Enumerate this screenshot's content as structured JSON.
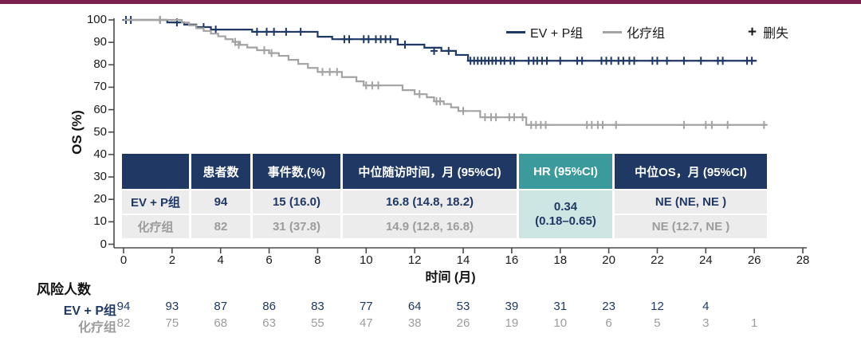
{
  "accent_bar_color": "#7A1F4E",
  "colors": {
    "navy": "#1F3864",
    "gray_series": "#A3A3A3",
    "gray_text": "#9C9C9C",
    "teal_header": "#3B9A9C",
    "teal_cell": "#CDE6E4",
    "row_bg": "#ECECEC",
    "axis": "#4A4A4A",
    "text": "#1a1a1a"
  },
  "legend": {
    "series": [
      {
        "label": "EV + P组",
        "color": "#1F3864"
      },
      {
        "label": "化疗组",
        "color": "#A3A3A3"
      }
    ],
    "censored_symbol": "+",
    "censored_label": "删失"
  },
  "chart_data": {
    "type": "line",
    "chart_kind": "kaplan-meier-step",
    "title": "",
    "xlabel": "时间 (月)",
    "ylabel": "OS (%)",
    "xlim": [
      0,
      28
    ],
    "ylim": [
      0,
      100
    ],
    "x_ticks": [
      0,
      2,
      4,
      6,
      8,
      10,
      12,
      14,
      16,
      18,
      20,
      22,
      24,
      26,
      28
    ],
    "y_ticks": [
      0,
      10,
      20,
      30,
      40,
      50,
      60,
      70,
      80,
      90,
      100
    ],
    "grid": false,
    "legend_position": "top-right",
    "series": [
      {
        "name": "EV + P组",
        "color": "#1F3864",
        "points": [
          [
            0,
            100
          ],
          [
            1.8,
            98.9
          ],
          [
            2.5,
            97.9
          ],
          [
            3.0,
            96.8
          ],
          [
            3.6,
            95.7
          ],
          [
            5.3,
            94.7
          ],
          [
            8.0,
            92.5
          ],
          [
            8.6,
            91.4
          ],
          [
            11.3,
            89.0
          ],
          [
            12.4,
            87.6
          ],
          [
            13.1,
            86.2
          ],
          [
            13.7,
            84.4
          ],
          [
            14.2,
            81.8
          ],
          [
            26.1,
            81.8
          ]
        ],
        "censor_marks": [
          [
            0.1,
            100
          ],
          [
            0.3,
            100
          ],
          [
            1.5,
            100
          ],
          [
            2.2,
            98.9
          ],
          [
            3.3,
            96.8
          ],
          [
            3.8,
            95.7
          ],
          [
            5.5,
            94.7
          ],
          [
            5.9,
            94.7
          ],
          [
            6.2,
            94.7
          ],
          [
            6.7,
            94.7
          ],
          [
            7.3,
            94.7
          ],
          [
            9.1,
            91.4
          ],
          [
            9.3,
            91.4
          ],
          [
            9.9,
            91.4
          ],
          [
            10.1,
            91.4
          ],
          [
            10.4,
            91.4
          ],
          [
            10.6,
            91.4
          ],
          [
            10.8,
            91.4
          ],
          [
            11.0,
            91.4
          ],
          [
            11.6,
            89.0
          ],
          [
            12.8,
            86.2
          ],
          [
            13.4,
            86.2
          ],
          [
            14.3,
            81.8
          ],
          [
            14.45,
            81.8
          ],
          [
            14.6,
            81.8
          ],
          [
            14.75,
            81.8
          ],
          [
            14.9,
            81.8
          ],
          [
            15.05,
            81.8
          ],
          [
            15.2,
            81.8
          ],
          [
            15.35,
            81.8
          ],
          [
            15.55,
            81.8
          ],
          [
            15.7,
            81.8
          ],
          [
            15.95,
            81.8
          ],
          [
            16.1,
            81.8
          ],
          [
            16.7,
            81.8
          ],
          [
            16.9,
            81.8
          ],
          [
            17.05,
            81.8
          ],
          [
            17.25,
            81.8
          ],
          [
            17.45,
            81.8
          ],
          [
            18.0,
            81.8
          ],
          [
            18.7,
            81.8
          ],
          [
            18.9,
            81.8
          ],
          [
            19.7,
            81.8
          ],
          [
            19.9,
            81.8
          ],
          [
            20.1,
            81.8
          ],
          [
            20.4,
            81.8
          ],
          [
            20.6,
            81.8
          ],
          [
            20.85,
            81.8
          ],
          [
            21.05,
            81.8
          ],
          [
            21.8,
            81.8
          ],
          [
            22.0,
            81.8
          ],
          [
            22.4,
            81.8
          ],
          [
            23.1,
            81.8
          ],
          [
            23.8,
            81.8
          ],
          [
            24.5,
            81.8
          ],
          [
            24.7,
            81.8
          ],
          [
            25.7,
            81.8
          ],
          [
            25.9,
            81.8
          ]
        ]
      },
      {
        "name": "化疗组",
        "color": "#A3A3A3",
        "points": [
          [
            0,
            100
          ],
          [
            2.4,
            98.8
          ],
          [
            2.7,
            97.6
          ],
          [
            3.0,
            96.3
          ],
          [
            3.3,
            95.1
          ],
          [
            3.6,
            93.9
          ],
          [
            3.9,
            92.7
          ],
          [
            4.2,
            91.4
          ],
          [
            4.5,
            90.2
          ],
          [
            4.8,
            88.9
          ],
          [
            5.1,
            87.7
          ],
          [
            5.5,
            86.5
          ],
          [
            6.0,
            85.2
          ],
          [
            6.4,
            84.0
          ],
          [
            6.8,
            82.2
          ],
          [
            7.2,
            80.4
          ],
          [
            7.6,
            78.6
          ],
          [
            8.0,
            76.8
          ],
          [
            9.0,
            74.5
          ],
          [
            9.6,
            72.6
          ],
          [
            9.9,
            70.8
          ],
          [
            11.5,
            68.7
          ],
          [
            12.0,
            66.9
          ],
          [
            12.5,
            65.5
          ],
          [
            12.8,
            63.7
          ],
          [
            13.2,
            62.5
          ],
          [
            13.5,
            61.0
          ],
          [
            13.8,
            59.4
          ],
          [
            14.7,
            56.6
          ],
          [
            16.6,
            53.2
          ],
          [
            26.5,
            53.2
          ]
        ],
        "censor_marks": [
          [
            1.5,
            100
          ],
          [
            4.6,
            90.2
          ],
          [
            4.75,
            88.9
          ],
          [
            5.8,
            86.5
          ],
          [
            6.1,
            85.2
          ],
          [
            8.2,
            76.8
          ],
          [
            8.5,
            76.8
          ],
          [
            8.8,
            76.8
          ],
          [
            10.0,
            70.8
          ],
          [
            10.25,
            70.8
          ],
          [
            10.5,
            70.8
          ],
          [
            12.2,
            66.9
          ],
          [
            12.9,
            63.7
          ],
          [
            13.05,
            63.7
          ],
          [
            14.0,
            59.4
          ],
          [
            14.9,
            56.6
          ],
          [
            15.15,
            56.6
          ],
          [
            15.35,
            56.6
          ],
          [
            15.9,
            56.6
          ],
          [
            16.1,
            56.6
          ],
          [
            16.45,
            56.6
          ],
          [
            16.8,
            53.2
          ],
          [
            17.0,
            53.2
          ],
          [
            17.2,
            53.2
          ],
          [
            17.4,
            53.2
          ],
          [
            19.1,
            53.2
          ],
          [
            19.3,
            53.2
          ],
          [
            19.55,
            53.2
          ],
          [
            19.75,
            53.2
          ],
          [
            20.3,
            53.2
          ],
          [
            23.1,
            53.2
          ],
          [
            24.0,
            53.2
          ],
          [
            24.25,
            53.2
          ],
          [
            24.9,
            53.2
          ],
          [
            26.4,
            53.2
          ]
        ]
      }
    ]
  },
  "summary_table": {
    "headers": [
      "",
      "患者数",
      "事件数,(%)",
      "中位随访时间，月 (95%CI)",
      "HR (95%CI)",
      "中位OS，月 (95%CI)"
    ],
    "rows": [
      {
        "label": "EV + P组",
        "patients": "94",
        "events": "15 (16.0)",
        "followup": "16.8 (14.8, 18.2)",
        "median_os": "NE (NE, NE )"
      },
      {
        "label": "化疗组",
        "patients": "82",
        "events": "31 (37.8)",
        "followup": "14.9 (12.8, 16.8)",
        "median_os": "NE (12.7, NE )"
      }
    ],
    "hr_value": "0.34",
    "hr_ci": "(0.18–0.65)"
  },
  "risk_table": {
    "title": "风险人数",
    "rows": [
      {
        "label": "EV + P组",
        "color": "#1F3864",
        "values": [
          94,
          93,
          87,
          86,
          83,
          77,
          64,
          53,
          39,
          31,
          23,
          12,
          4
        ]
      },
      {
        "label": "化疗组",
        "color": "#9C9C9C",
        "values": [
          82,
          75,
          68,
          63,
          55,
          47,
          38,
          26,
          19,
          10,
          6,
          5,
          3,
          1
        ]
      }
    ]
  }
}
